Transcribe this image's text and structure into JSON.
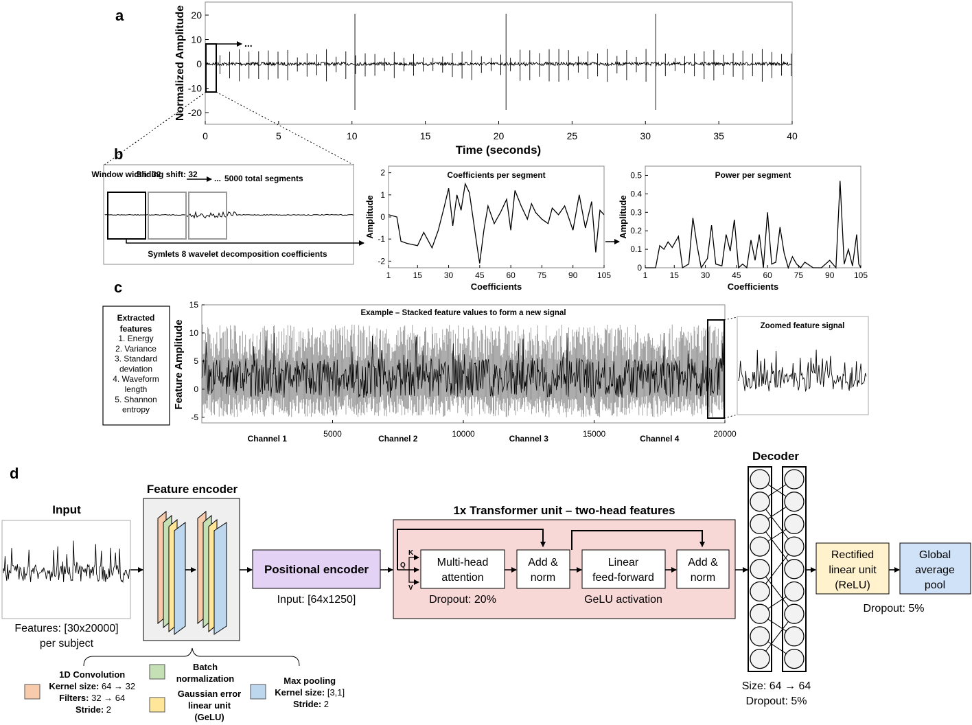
{
  "panels": {
    "a": {
      "label": "a",
      "ylabel": "Normalized Amplitude",
      "xlabel": "Time (seconds)",
      "yticks": [
        "20",
        "10",
        "0",
        "-10",
        "-20"
      ],
      "xticks": [
        "0",
        "5",
        "10",
        "15",
        "20",
        "25",
        "30",
        "35",
        "40"
      ],
      "ellipsis": "..."
    },
    "b": {
      "label": "b",
      "window_label": "Window\nwidth: 32",
      "sliding_label": "Sliding\nshift: 32",
      "segments_label": "5000 total segments",
      "ellipsis": "...",
      "symlets_label": "Symlets 8 wavelet decomposition coefficients",
      "coef_title": "Coefficients per segment",
      "coef_ylabel": "Amplitude",
      "coef_xlabel": "Coefficients",
      "coef_yticks": [
        "2",
        "1",
        "0",
        "-1",
        "-2"
      ],
      "coef_xticks": [
        "1",
        "15",
        "30",
        "45",
        "60",
        "75",
        "90",
        "105"
      ],
      "power_title": "Power per segment",
      "power_ylabel": "Amplitude",
      "power_xlabel": "Coefficients",
      "power_yticks": [
        "0.5",
        "0.4",
        "0.3",
        "0.2",
        "0.1",
        "0"
      ],
      "power_xticks": [
        "1",
        "15",
        "30",
        "45",
        "60",
        "75",
        "90",
        "105"
      ]
    },
    "c": {
      "label": "c",
      "features_title": "Extracted features",
      "features": [
        "1. Energy",
        "2. Variance",
        "3. Standard deviation",
        "4. Waveform length",
        "5. Shannon entropy"
      ],
      "chart_title": "Example – Stacked feature values to form a new signal",
      "ylabel": "Feature Amplitude",
      "yticks": [
        "15",
        "10",
        "5",
        "0",
        "-5"
      ],
      "xticks": [
        "5000",
        "10000",
        "15000",
        "20000"
      ],
      "channels": [
        "Channel 1",
        "Channel 2",
        "Channel 3",
        "Channel 4"
      ],
      "zoom_title": "Zoomed feature signal"
    },
    "d": {
      "label": "d",
      "input_title": "Input",
      "input_caption": "Features: [30x20000]\nper subject",
      "encoder_title": "Feature encoder",
      "positional": "Positional encoder",
      "positional_caption": "Input: [64x1250]",
      "transformer_title": "1x Transformer unit – two-head features",
      "mha": "Multi-head\nattention",
      "addnorm1": "Add &\nnorm",
      "linear": "Linear\nfeed-forward",
      "addnorm2": "Add &\nnorm",
      "k": "K",
      "q": "Q",
      "v": "V",
      "dropout_mha": "Dropout: 20%",
      "gelu_act": "GeLU activation",
      "decoder_title": "Decoder",
      "decoder_caption": "Size: 64 → 64\nDropout: 5%",
      "relu": "Rectified\nlinear unit\n(ReLU)",
      "gap": "Global\naverage\npool",
      "gap_caption": "Dropout: 5%",
      "legend": {
        "conv": "1D Convolution\nKernel size: 64 → 32\nFilters: 32 → 64\nStride: 2",
        "batch": "Batch\nnormalization",
        "gelu": "Gaussian error\nlinear unit\n(GeLU)",
        "pool": "Max pooling\nKernel size: [3,1]\nStride: 2"
      }
    }
  },
  "colors": {
    "conv": "#f8cbad",
    "batch": "#c5e0b4",
    "gelu": "#ffe699",
    "pool": "#bdd7ee",
    "positional": "#e4d2f5",
    "transformer": "#f8d7d7",
    "relu": "#fff2cc",
    "gap": "#cfe2f8"
  },
  "chart_data": [
    {
      "type": "line",
      "name": "panel-a",
      "xlabel": "Time (seconds)",
      "ylabel": "Normalized Amplitude",
      "xlim": [
        0,
        40
      ],
      "ylim": [
        -25,
        25
      ],
      "spikes_at_seconds": [
        10.2,
        20.5,
        30.7
      ]
    },
    {
      "type": "line",
      "name": "coefficients-per-segment",
      "title": "Coefficients per segment",
      "xlabel": "Coefficients",
      "ylabel": "Amplitude",
      "xlim": [
        1,
        105
      ],
      "ylim": [
        -2.3,
        2.3
      ],
      "x": [
        1,
        5,
        7,
        10,
        15,
        18,
        22,
        25,
        28,
        30,
        32,
        34,
        36,
        38,
        40,
        42,
        44,
        45,
        47,
        49,
        52,
        55,
        58,
        60,
        62,
        65,
        68,
        70,
        72,
        75,
        78,
        80,
        83,
        86,
        90,
        93,
        96,
        99,
        101,
        103,
        105
      ],
      "y": [
        0.1,
        0.0,
        -1.1,
        -1.2,
        -1.3,
        -0.7,
        -1.4,
        -0.6,
        0.5,
        1.3,
        -0.4,
        1.0,
        0.3,
        1.5,
        1.1,
        -0.2,
        -1.5,
        -2.1,
        -0.6,
        0.5,
        -0.3,
        0.2,
        0.8,
        -0.6,
        1.2,
        0.5,
        -0.1,
        0.6,
        0.2,
        -0.1,
        -0.3,
        0.4,
        0.1,
        0.5,
        -0.6,
        1.0,
        -0.5,
        0.7,
        -1.6,
        0.3,
        0.1
      ]
    },
    {
      "type": "line",
      "name": "power-per-segment",
      "title": "Power per segment",
      "xlabel": "Coefficients",
      "ylabel": "Amplitude",
      "xlim": [
        1,
        105
      ],
      "ylim": [
        0,
        0.5
      ],
      "x": [
        1,
        6,
        8,
        10,
        12,
        14,
        17,
        19,
        22,
        24,
        26,
        28,
        31,
        33,
        35,
        38,
        40,
        42,
        44,
        46,
        48,
        50,
        52,
        54,
        56,
        58,
        60,
        62,
        64,
        66,
        68,
        70,
        72,
        74,
        76,
        78,
        82,
        86,
        90,
        93,
        95,
        97,
        99,
        101,
        103,
        104,
        105
      ],
      "y": [
        0,
        0,
        0.12,
        0.1,
        0.14,
        0.11,
        0.17,
        0,
        0.02,
        0.27,
        0.12,
        0,
        0.05,
        0.23,
        0.02,
        0.01,
        0.18,
        0.09,
        0.26,
        0,
        0.02,
        0,
        0.15,
        0.04,
        0.18,
        0,
        0.3,
        0.02,
        0.03,
        0.22,
        0.08,
        0,
        0.06,
        0.02,
        0,
        0.03,
        0,
        0,
        0.04,
        0,
        0.47,
        0.02,
        0.1,
        0.01,
        0.18,
        0.02,
        0
      ]
    },
    {
      "type": "line",
      "name": "stacked-feature-signal",
      "title": "Example – Stacked feature values to form a new signal",
      "ylabel": "Feature Amplitude",
      "xlim": [
        0,
        20000
      ],
      "ylim": [
        -6,
        15
      ],
      "categories": [
        "Channel 1",
        "Channel 2",
        "Channel 3",
        "Channel 4"
      ]
    }
  ]
}
